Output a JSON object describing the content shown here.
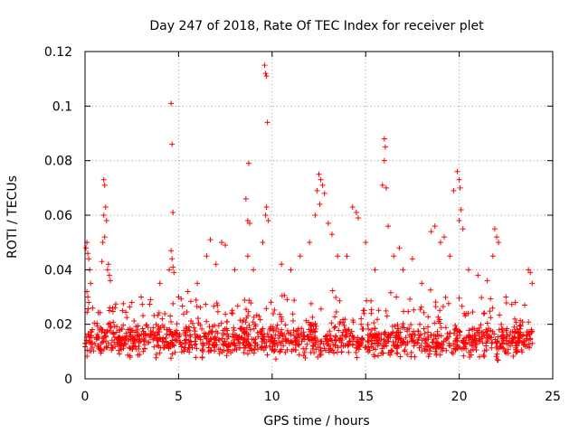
{
  "chart_data": {
    "type": "scatter",
    "title": "Day 247 of 2018, Rate Of TEC Index for receiver plet",
    "xlabel": "GPS time / hours",
    "ylabel": "ROTI / TECUs",
    "xlim": [
      0,
      25
    ],
    "ylim": [
      0,
      0.12
    ],
    "xticks": [
      0,
      5,
      10,
      15,
      20,
      25
    ],
    "xtick_labels": [
      "0",
      "5",
      "10",
      "15",
      "20",
      "25"
    ],
    "yticks": [
      0,
      0.02,
      0.04,
      0.06,
      0.08,
      0.1,
      0.12
    ],
    "ytick_labels": [
      "0",
      "0.02",
      "0.04",
      "0.06",
      "0.08",
      "0.1",
      "0.12"
    ],
    "grid": true,
    "marker": "+",
    "color": "#ff0000",
    "series": [
      {
        "name": "ROTI",
        "x": [
          0.0,
          0.05,
          0.1,
          0.15,
          0.2,
          0.25,
          0.3,
          0.1,
          0.15,
          0.2,
          0.9,
          1.0,
          1.05,
          1.1,
          1.0,
          1.15,
          1.2,
          1.25,
          1.3,
          1.35,
          0.95,
          1.05,
          2.0,
          2.5,
          3.0,
          3.5,
          4.0,
          4.5,
          4.6,
          4.65,
          4.7,
          4.6,
          4.65,
          4.7,
          4.75,
          5.0,
          5.5,
          6.0,
          6.5,
          6.7,
          7.0,
          7.3,
          7.5,
          8.0,
          8.6,
          8.7,
          8.75,
          8.8,
          8.7,
          9.0,
          9.5,
          9.6,
          9.65,
          9.7,
          9.75,
          9.7,
          9.65,
          9.8,
          10.5,
          11.0,
          11.5,
          12.0,
          12.3,
          12.4,
          12.5,
          12.6,
          12.55,
          12.7,
          12.8,
          13.0,
          13.2,
          13.5,
          14.0,
          14.3,
          14.5,
          14.6,
          15.0,
          15.5,
          15.9,
          16.0,
          16.05,
          16.0,
          16.1,
          16.2,
          16.5,
          16.8,
          17.0,
          17.5,
          18.0,
          18.5,
          18.7,
          19.0,
          19.2,
          19.5,
          19.7,
          19.9,
          20.0,
          20.05,
          20.1,
          20.0,
          20.2,
          20.5,
          21.0,
          21.5,
          21.8,
          21.9,
          22.0,
          22.1,
          22.5,
          23.0,
          23.5,
          23.7,
          23.8,
          23.9
        ],
        "y": [
          0.013,
          0.048,
          0.05,
          0.046,
          0.044,
          0.04,
          0.035,
          0.032,
          0.03,
          0.028,
          0.043,
          0.073,
          0.071,
          0.063,
          0.06,
          0.058,
          0.04,
          0.042,
          0.038,
          0.036,
          0.05,
          0.052,
          0.025,
          0.028,
          0.03,
          0.029,
          0.035,
          0.04,
          0.101,
          0.086,
          0.061,
          0.047,
          0.044,
          0.041,
          0.039,
          0.03,
          0.032,
          0.035,
          0.045,
          0.051,
          0.042,
          0.05,
          0.049,
          0.04,
          0.066,
          0.058,
          0.079,
          0.057,
          0.045,
          0.04,
          0.05,
          0.115,
          0.112,
          0.111,
          0.094,
          0.063,
          0.06,
          0.058,
          0.042,
          0.04,
          0.045,
          0.05,
          0.06,
          0.069,
          0.075,
          0.073,
          0.064,
          0.071,
          0.068,
          0.057,
          0.053,
          0.045,
          0.045,
          0.063,
          0.061,
          0.059,
          0.05,
          0.04,
          0.071,
          0.088,
          0.085,
          0.08,
          0.07,
          0.056,
          0.045,
          0.048,
          0.04,
          0.044,
          0.035,
          0.054,
          0.056,
          0.05,
          0.052,
          0.045,
          0.069,
          0.076,
          0.073,
          0.07,
          0.062,
          0.058,
          0.055,
          0.04,
          0.038,
          0.036,
          0.045,
          0.055,
          0.052,
          0.05,
          0.03,
          0.028,
          0.027,
          0.04,
          0.039,
          0.035
        ]
      }
    ],
    "background_band": {
      "x_range": [
        0,
        24
      ],
      "y_center": 0.014,
      "y_spread": 0.006,
      "density_per_hour": 60
    }
  }
}
